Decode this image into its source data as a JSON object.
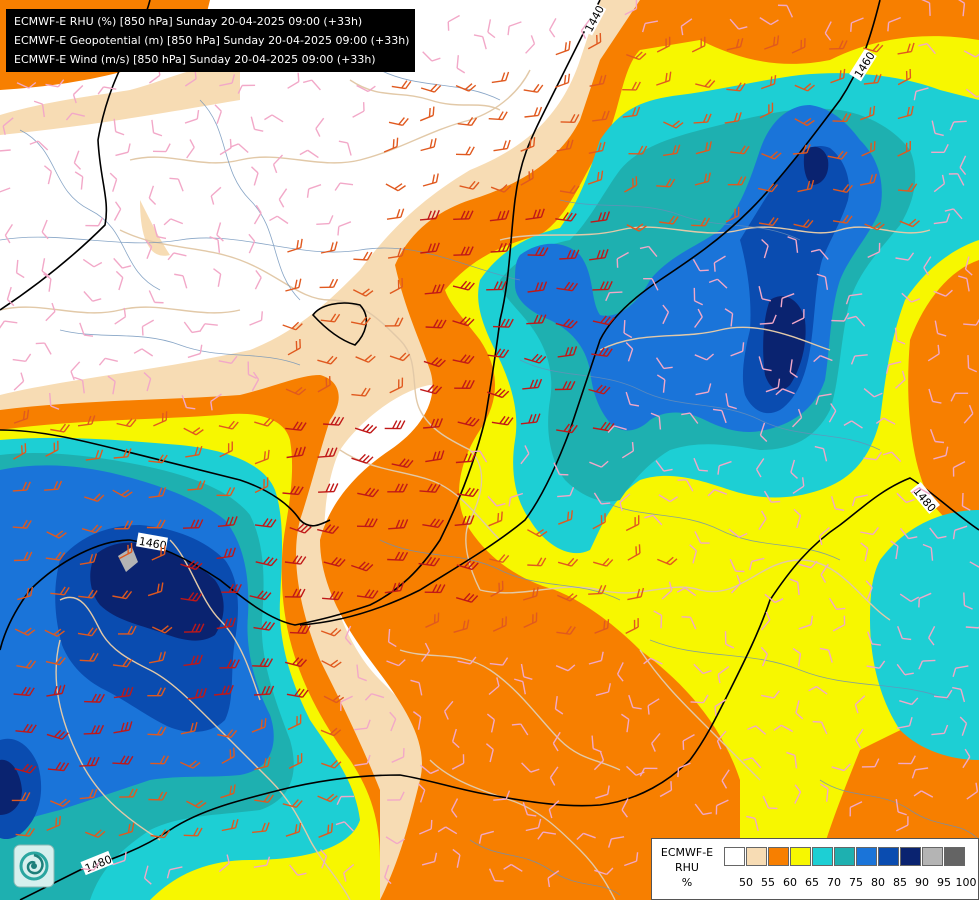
{
  "header": {
    "lines": [
      "ECMWF-E RHU (%) [850 hPa] Sunday 20-04-2025 09:00 (+33h)",
      "ECMWF-E Geopotential (m) [850 hPa] Sunday 20-04-2025 09:00 (+33h)",
      "ECMWF-E Wind (m/s) [850 hPa] Sunday 20-04-2025 09:00 (+33h)"
    ]
  },
  "legend": {
    "title_line1": "ECMWF-E",
    "title_line2": "RHU",
    "title_line3": "%",
    "colors": [
      "#ffffff",
      "#f7dcb4",
      "#f77f00",
      "#f7f700",
      "#1dcfd4",
      "#1eb0b0",
      "#1a74d9",
      "#0a4cb0",
      "#0a2370",
      "#b4b4b4",
      "#646464"
    ],
    "ticks": [
      "50",
      "55",
      "60",
      "65",
      "70",
      "75",
      "80",
      "85",
      "90",
      "95",
      "100"
    ]
  },
  "isolines": {
    "labels": [
      "1440",
      "1460",
      "1460",
      "1460",
      "1480",
      "1480"
    ]
  },
  "colors": {
    "rh_lt50": "#ffffff",
    "rh_50_55": "#f7dcb4",
    "rh_55_60": "#f77f00",
    "rh_60_65": "#f7f700",
    "rh_65_70": "#1dcfd4",
    "rh_70_75": "#1eb0b0",
    "rh_75_80": "#1a74d9",
    "rh_80_85": "#0a4cb0",
    "rh_85_90": "#0a2370",
    "rh_90_95": "#b4b4b4",
    "rh_95_100": "#646464",
    "contour": "#000000",
    "border": "#e2c9a8",
    "river": "#6a8fb8",
    "wind_weak": "#f2a8c8",
    "wind_moderate": "#e0591f",
    "wind_strong": "#c01818"
  },
  "icons": {
    "logo": "swirl-logo-icon"
  }
}
